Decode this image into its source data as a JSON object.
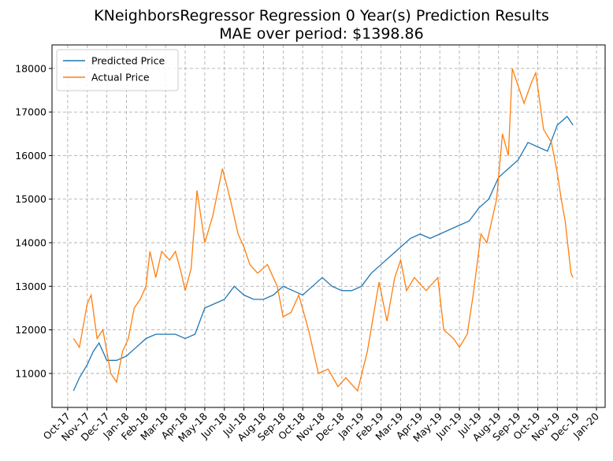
{
  "chart_data": {
    "type": "line",
    "title": "KNeighborsRegressor Regression 0 Year(s) Prediction Results",
    "subtitle": "MAE over period: $1398.86",
    "series": [
      {
        "name": "Predicted Price",
        "color": "#1f77b4",
        "x": [
          0.3,
          0.6,
          1.0,
          1.3,
          1.6,
          2.0,
          2.5,
          3.0,
          3.5,
          4.0,
          4.5,
          5.0,
          5.5,
          6.0,
          6.5,
          7.0,
          7.5,
          8.0,
          8.5,
          9.0,
          9.5,
          10.0,
          10.5,
          11.0,
          11.5,
          12.0,
          12.5,
          13.0,
          13.5,
          14.0,
          14.5,
          15.0,
          15.5,
          16.0,
          16.5,
          17.0,
          17.5,
          18.0,
          18.5,
          19.0,
          19.5,
          20.0,
          20.5,
          21.0,
          21.5,
          22.0,
          22.5,
          23.0,
          23.5,
          24.0,
          24.5,
          25.0,
          25.5,
          25.8
        ],
        "values": [
          10600,
          10900,
          11200,
          11500,
          11700,
          11300,
          11300,
          11400,
          11600,
          11800,
          11900,
          11900,
          11900,
          11800,
          11900,
          12500,
          12600,
          12700,
          13000,
          12800,
          12700,
          12700,
          12800,
          13000,
          12900,
          12800,
          13000,
          13200,
          13000,
          12900,
          12900,
          13000,
          13300,
          13500,
          13700,
          13900,
          14100,
          14200,
          14100,
          14200,
          14300,
          14400,
          14500,
          14800,
          15000,
          15500,
          15700,
          15900,
          16300,
          16200,
          16100,
          16700,
          16900,
          16700
        ]
      },
      {
        "name": "Actual Price",
        "color": "#ff7f0e",
        "x": [
          0.3,
          0.6,
          1.0,
          1.2,
          1.5,
          1.8,
          2.2,
          2.5,
          2.8,
          3.1,
          3.4,
          3.7,
          4.0,
          4.2,
          4.5,
          4.8,
          5.2,
          5.5,
          5.8,
          6.0,
          6.3,
          6.6,
          7.0,
          7.4,
          7.9,
          8.3,
          8.7,
          9.0,
          9.3,
          9.7,
          10.2,
          10.7,
          11.0,
          11.4,
          11.8,
          12.3,
          12.8,
          13.3,
          13.8,
          14.2,
          14.8,
          15.3,
          15.9,
          16.3,
          16.7,
          17.0,
          17.3,
          17.7,
          18.3,
          18.9,
          19.2,
          19.7,
          20.0,
          20.4,
          20.7,
          21.1,
          21.4,
          21.9,
          22.2,
          22.5,
          22.7,
          23.0,
          23.3,
          23.7,
          23.9,
          24.3,
          24.7,
          25.0,
          25.2,
          25.4,
          25.7,
          25.8
        ],
        "values": [
          11800,
          11600,
          12600,
          12800,
          11800,
          12000,
          11000,
          10800,
          11500,
          11800,
          12500,
          12700,
          13000,
          13800,
          13200,
          13800,
          13600,
          13800,
          13300,
          12900,
          13400,
          15200,
          14000,
          14600,
          15700,
          15000,
          14200,
          13900,
          13500,
          13300,
          13500,
          13000,
          12300,
          12400,
          12800,
          12000,
          11000,
          11100,
          10700,
          10900,
          10600,
          11500,
          13100,
          12200,
          13200,
          13600,
          12900,
          13200,
          12900,
          13200,
          12000,
          11800,
          11600,
          11900,
          12800,
          14200,
          14000,
          15000,
          16500,
          16000,
          18000,
          17600,
          17200,
          17700,
          17900,
          16600,
          16300,
          15600,
          15000,
          14500,
          13300,
          13200
        ]
      }
    ],
    "xlim": [
      -0.8,
      27.44
    ],
    "xticks": [
      {
        "value": 0,
        "label": "Oct-17"
      },
      {
        "value": 1,
        "label": "Nov-17"
      },
      {
        "value": 2,
        "label": "Dec-17"
      },
      {
        "value": 3,
        "label": "Jan-18"
      },
      {
        "value": 4,
        "label": "Feb-18"
      },
      {
        "value": 5,
        "label": "Mar-18"
      },
      {
        "value": 6,
        "label": "Apr-18"
      },
      {
        "value": 7,
        "label": "May-18"
      },
      {
        "value": 8,
        "label": "Jun-18"
      },
      {
        "value": 9,
        "label": "Jul-18"
      },
      {
        "value": 10,
        "label": "Aug-18"
      },
      {
        "value": 11,
        "label": "Sep-18"
      },
      {
        "value": 12,
        "label": "Oct-18"
      },
      {
        "value": 13,
        "label": "Nov-18"
      },
      {
        "value": 14,
        "label": "Dec-18"
      },
      {
        "value": 15,
        "label": "Jan-19"
      },
      {
        "value": 16,
        "label": "Feb-19"
      },
      {
        "value": 17,
        "label": "Mar-19"
      },
      {
        "value": 18,
        "label": "Apr-19"
      },
      {
        "value": 19,
        "label": "May-19"
      },
      {
        "value": 20,
        "label": "Jun-19"
      },
      {
        "value": 21,
        "label": "Jul-19"
      },
      {
        "value": 22,
        "label": "Aug-19"
      },
      {
        "value": 23,
        "label": "Sep-19"
      },
      {
        "value": 24,
        "label": "Oct-19"
      },
      {
        "value": 25,
        "label": "Nov-19"
      },
      {
        "value": 26,
        "label": "Dec-19"
      },
      {
        "value": 27,
        "label": "Jan-20"
      }
    ],
    "ylim": [
      10220,
      18540
    ],
    "yticks": [
      11000,
      12000,
      13000,
      14000,
      15000,
      16000,
      17000,
      18000
    ],
    "grid": true,
    "legend": "upper-left"
  }
}
